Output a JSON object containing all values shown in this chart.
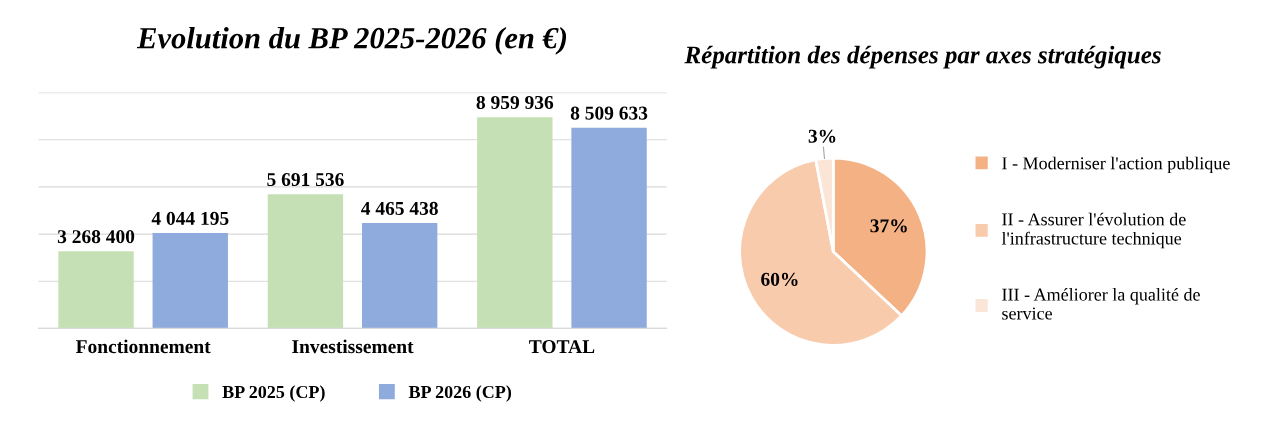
{
  "chart_data": [
    {
      "type": "bar",
      "title": "Evolution du BP 2025-2026 (en €)",
      "categories": [
        "Fonctionnement",
        "Investissement",
        "TOTAL"
      ],
      "series": [
        {
          "name": "BP 2025 (CP)",
          "color": "#c5e0b4",
          "values": [
            3268400,
            5691536,
            8959936
          ],
          "value_labels": [
            "3 268 400",
            "5 691 536",
            "8 959 936"
          ]
        },
        {
          "name": "BP 2026 (CP)",
          "color": "#8faadc",
          "values": [
            4044195,
            4465438,
            8509633
          ],
          "value_labels": [
            "4 044 195",
            "4 465 438",
            "8 509 633"
          ]
        }
      ],
      "ylim": [
        0,
        10000000
      ],
      "yticks": [
        {
          "value": 0,
          "label": null
        },
        {
          "value": 2000000,
          "label": null
        },
        {
          "value": 4000000,
          "label": null
        },
        {
          "value": 6000000,
          "label": null
        },
        {
          "value": 8000000,
          "label": null
        },
        {
          "value": 10000000,
          "label": null
        }
      ],
      "grid": "y",
      "legend": "bottom",
      "tick_labels": "x"
    },
    {
      "type": "pie",
      "title": "Répartition des dépenses par axes stratégiques",
      "categories": [
        "I - Moderniser l'action publique",
        "II - Assurer l'évolution de l'infrastructure technique",
        "III - Améliorer la qualité de service"
      ],
      "values": [
        37,
        60,
        3
      ],
      "colors": [
        "#f4b183",
        "#f8cbad",
        "#fbe5d6"
      ],
      "value_labels": [
        "37%",
        "60%",
        "3%"
      ],
      "legend": "right"
    }
  ]
}
